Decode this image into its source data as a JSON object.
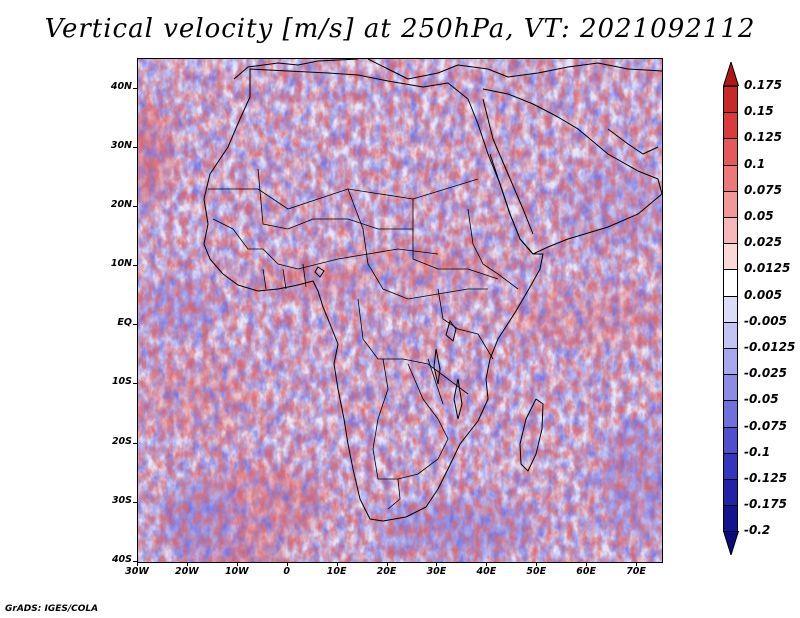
{
  "title": "Vertical velocity [m/s] at 250hPa, VT: 2021092112",
  "credit": "GrADS: IGES/COLA",
  "map": {
    "region": "Africa",
    "projection": "latlon",
    "lat_range": [
      -40,
      45
    ],
    "lon_range": [
      -30,
      75
    ],
    "lat_ticks": [
      {
        "value": 40,
        "label": "40N"
      },
      {
        "value": 30,
        "label": "30N"
      },
      {
        "value": 20,
        "label": "20N"
      },
      {
        "value": 10,
        "label": "10N"
      },
      {
        "value": 0,
        "label": "EQ"
      },
      {
        "value": -10,
        "label": "10S"
      },
      {
        "value": -20,
        "label": "20S"
      },
      {
        "value": -30,
        "label": "30S"
      },
      {
        "value": -40,
        "label": "40S"
      }
    ],
    "lon_ticks": [
      {
        "value": -30,
        "label": "30W"
      },
      {
        "value": -20,
        "label": "20W"
      },
      {
        "value": -10,
        "label": "10W"
      },
      {
        "value": 0,
        "label": "0"
      },
      {
        "value": 10,
        "label": "10E"
      },
      {
        "value": 20,
        "label": "20E"
      },
      {
        "value": 30,
        "label": "30E"
      },
      {
        "value": 40,
        "label": "40E"
      },
      {
        "value": 50,
        "label": "50E"
      },
      {
        "value": 60,
        "label": "60E"
      },
      {
        "value": 70,
        "label": "70E"
      }
    ]
  },
  "colorbar": {
    "labels": [
      "0.175",
      "0.15",
      "0.125",
      "0.1",
      "0.075",
      "0.05",
      "0.025",
      "0.0125",
      "0.005",
      "-0.005",
      "-0.0125",
      "-0.025",
      "-0.05",
      "-0.075",
      "-0.1",
      "-0.125",
      "-0.175",
      "-0.2"
    ],
    "colors": [
      "#b01818",
      "#c82828",
      "#d83c3c",
      "#e45a5a",
      "#ec7878",
      "#f29898",
      "#f6b8b8",
      "#fad8d8",
      "#ffffff",
      "#dcdcf8",
      "#c4c4f4",
      "#a8a8ee",
      "#8c8ce6",
      "#7070dc",
      "#5050cc",
      "#3636bc",
      "#2222a8",
      "#141490",
      "#0a0a78"
    ]
  },
  "colors": {
    "background": "#ffffff",
    "ocean_base": "#e9e9fb",
    "upward": "#e06060",
    "downward": "#6a6ae0",
    "border_line": "#000000"
  }
}
